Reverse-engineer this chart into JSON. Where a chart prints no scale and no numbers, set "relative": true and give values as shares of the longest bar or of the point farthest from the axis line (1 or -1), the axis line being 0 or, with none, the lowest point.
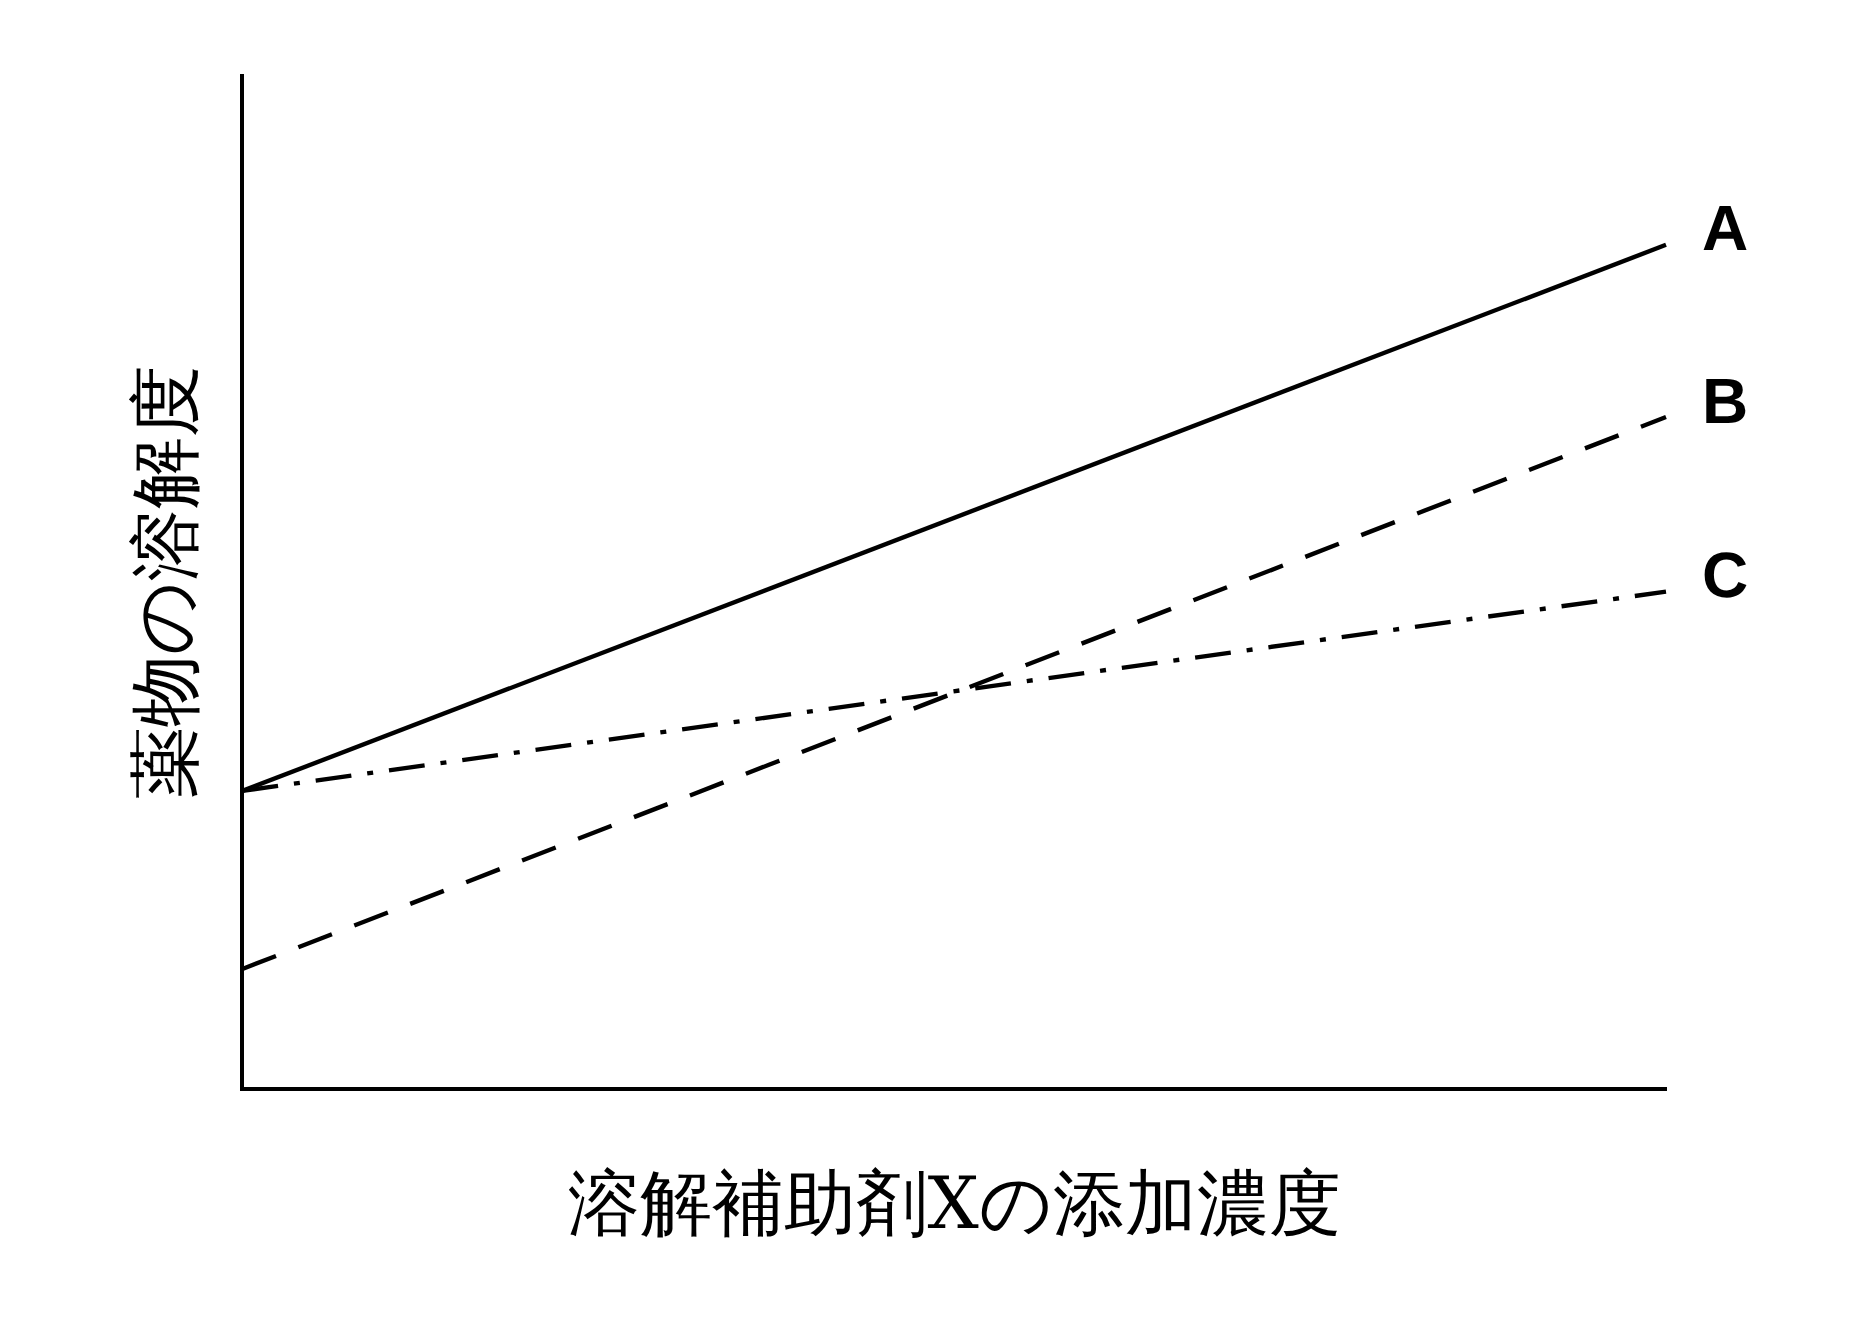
{
  "chart_data": {
    "type": "line",
    "relative": true,
    "xlabel": "溶解補助剤Xの添加濃度",
    "ylabel": "薬物の溶解度",
    "categories": [
      null,
      null
    ],
    "grid": false,
    "legend": false,
    "marker": "none",
    "series": [
      {
        "name": "A",
        "color": "#000000",
        "values": [
          0.353,
          1
        ],
        "line_style": "solid"
      },
      {
        "name": "B",
        "color": "#000000",
        "values": [
          0.142,
          0.796
        ],
        "line_style": "dashed"
      },
      {
        "name": "C",
        "color": "#000000",
        "values": [
          0.353,
          0.589
        ],
        "line_style": "dashdot"
      }
    ]
  }
}
